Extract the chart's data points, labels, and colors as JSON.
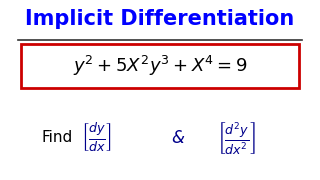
{
  "title": "Implicit Differentiation",
  "title_color": "#0000FF",
  "title_fontsize": 15,
  "bg_color": "#FFFFFF",
  "equation": "y$^2$ + 5X$^2$y$^3$ + X$^4$ = 9",
  "eq_color": "#000000",
  "eq_fontsize": 13,
  "eq_box_color": "#CC0000",
  "find_text": "Find",
  "find_color": "#000000",
  "find_fontsize": 11,
  "frac1_num": "dy",
  "frac1_den": "dx",
  "frac2_num": "d$^2$y",
  "frac2_den": "dx$^2$",
  "frac_color": "#00008B",
  "amp_text": "&",
  "amp_color": "#00008B",
  "line_color": "#333333",
  "bracket_color": "#0000CC"
}
